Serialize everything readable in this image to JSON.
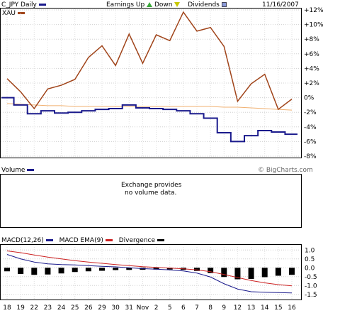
{
  "header": {
    "symbol": "C_JPY Daily",
    "earnings_up": "Earnings Up",
    "down": "Down",
    "dividends": "Dividends",
    "date": "11/16/2007",
    "colors": {
      "primary": "#1a1a8c",
      "compare": "#a0441a",
      "ma": "#f0b070"
    }
  },
  "compare_label": "XAU",
  "volume": {
    "label": "Volume",
    "watermark": "© BigCharts.com",
    "message_line1": "Exchange provides",
    "message_line2": "no volume data."
  },
  "macd": {
    "label": "MACD(12,26)",
    "ema_label": "MACD EMA(9)",
    "divergence_label": "Divergence"
  },
  "chart_data": [
    {
      "type": "line",
      "title": "C_JPY Daily",
      "x": [
        "18",
        "19",
        "22",
        "23",
        "24",
        "25",
        "26",
        "29",
        "30",
        "31",
        "Nov",
        "2",
        "5",
        "6",
        "7",
        "8",
        "9",
        "12",
        "13",
        "14",
        "15",
        "16"
      ],
      "ylim": [
        -8,
        12
      ],
      "y_ticks": [
        "+12%",
        "+10%",
        "+8%",
        "+6%",
        "+4%",
        "+2%",
        "0%",
        "-2%",
        "-4%",
        "-6%",
        "-8%"
      ],
      "series": [
        {
          "name": "C_JPY",
          "values": [
            0.0,
            -1.0,
            -2.2,
            -1.8,
            -2.1,
            -2.0,
            -1.8,
            -1.6,
            -1.5,
            -1.0,
            -1.4,
            -1.5,
            -1.6,
            -1.8,
            -2.2,
            -2.8,
            -4.8,
            -6.0,
            -5.2,
            -4.5,
            -4.7,
            -5.0
          ]
        },
        {
          "name": "XAU",
          "values": [
            2.6,
            0.8,
            -1.5,
            1.2,
            1.7,
            2.5,
            5.5,
            7.1,
            4.4,
            8.7,
            4.7,
            8.6,
            7.8,
            11.7,
            9.1,
            9.6,
            7.0,
            -0.5,
            1.9,
            3.2,
            -1.6,
            -0.2
          ]
        },
        {
          "name": "Moving Average",
          "values": [
            -0.8,
            -0.9,
            -1.0,
            -1.1,
            -1.1,
            -1.2,
            -1.2,
            -1.2,
            -1.2,
            -1.2,
            -1.2,
            -1.2,
            -1.2,
            -1.2,
            -1.2,
            -1.2,
            -1.3,
            -1.3,
            -1.4,
            -1.5,
            -1.6,
            -1.7
          ]
        }
      ]
    },
    {
      "type": "line",
      "title": "MACD(12,26)",
      "x": [
        "18",
        "19",
        "22",
        "23",
        "24",
        "25",
        "26",
        "29",
        "30",
        "31",
        "Nov",
        "2",
        "5",
        "6",
        "7",
        "8",
        "9",
        "12",
        "13",
        "14",
        "15",
        "16"
      ],
      "ylim": [
        -1.75,
        1.25
      ],
      "y_ticks": [
        "1.0",
        "0.5",
        "0.0",
        "-0.5",
        "-1.0",
        "-1.5"
      ],
      "series": [
        {
          "name": "MACD",
          "values": [
            0.75,
            0.5,
            0.32,
            0.22,
            0.18,
            0.16,
            0.12,
            0.08,
            0.05,
            0.0,
            -0.05,
            -0.08,
            -0.12,
            -0.18,
            -0.3,
            -0.52,
            -0.9,
            -1.2,
            -1.35,
            -1.38,
            -1.4,
            -1.42
          ]
        },
        {
          "name": "MACD EMA(9)",
          "values": [
            0.95,
            0.85,
            0.72,
            0.6,
            0.5,
            0.4,
            0.32,
            0.25,
            0.18,
            0.12,
            0.06,
            0.02,
            -0.02,
            -0.06,
            -0.12,
            -0.22,
            -0.38,
            -0.55,
            -0.72,
            -0.85,
            -0.95,
            -1.02
          ]
        },
        {
          "name": "Divergence",
          "values": [
            -0.2,
            -0.35,
            -0.4,
            -0.38,
            -0.32,
            -0.24,
            -0.2,
            -0.17,
            -0.13,
            -0.12,
            -0.11,
            -0.1,
            -0.1,
            -0.12,
            -0.18,
            -0.3,
            -0.52,
            -0.65,
            -0.63,
            -0.53,
            -0.45,
            -0.4
          ]
        }
      ]
    }
  ]
}
